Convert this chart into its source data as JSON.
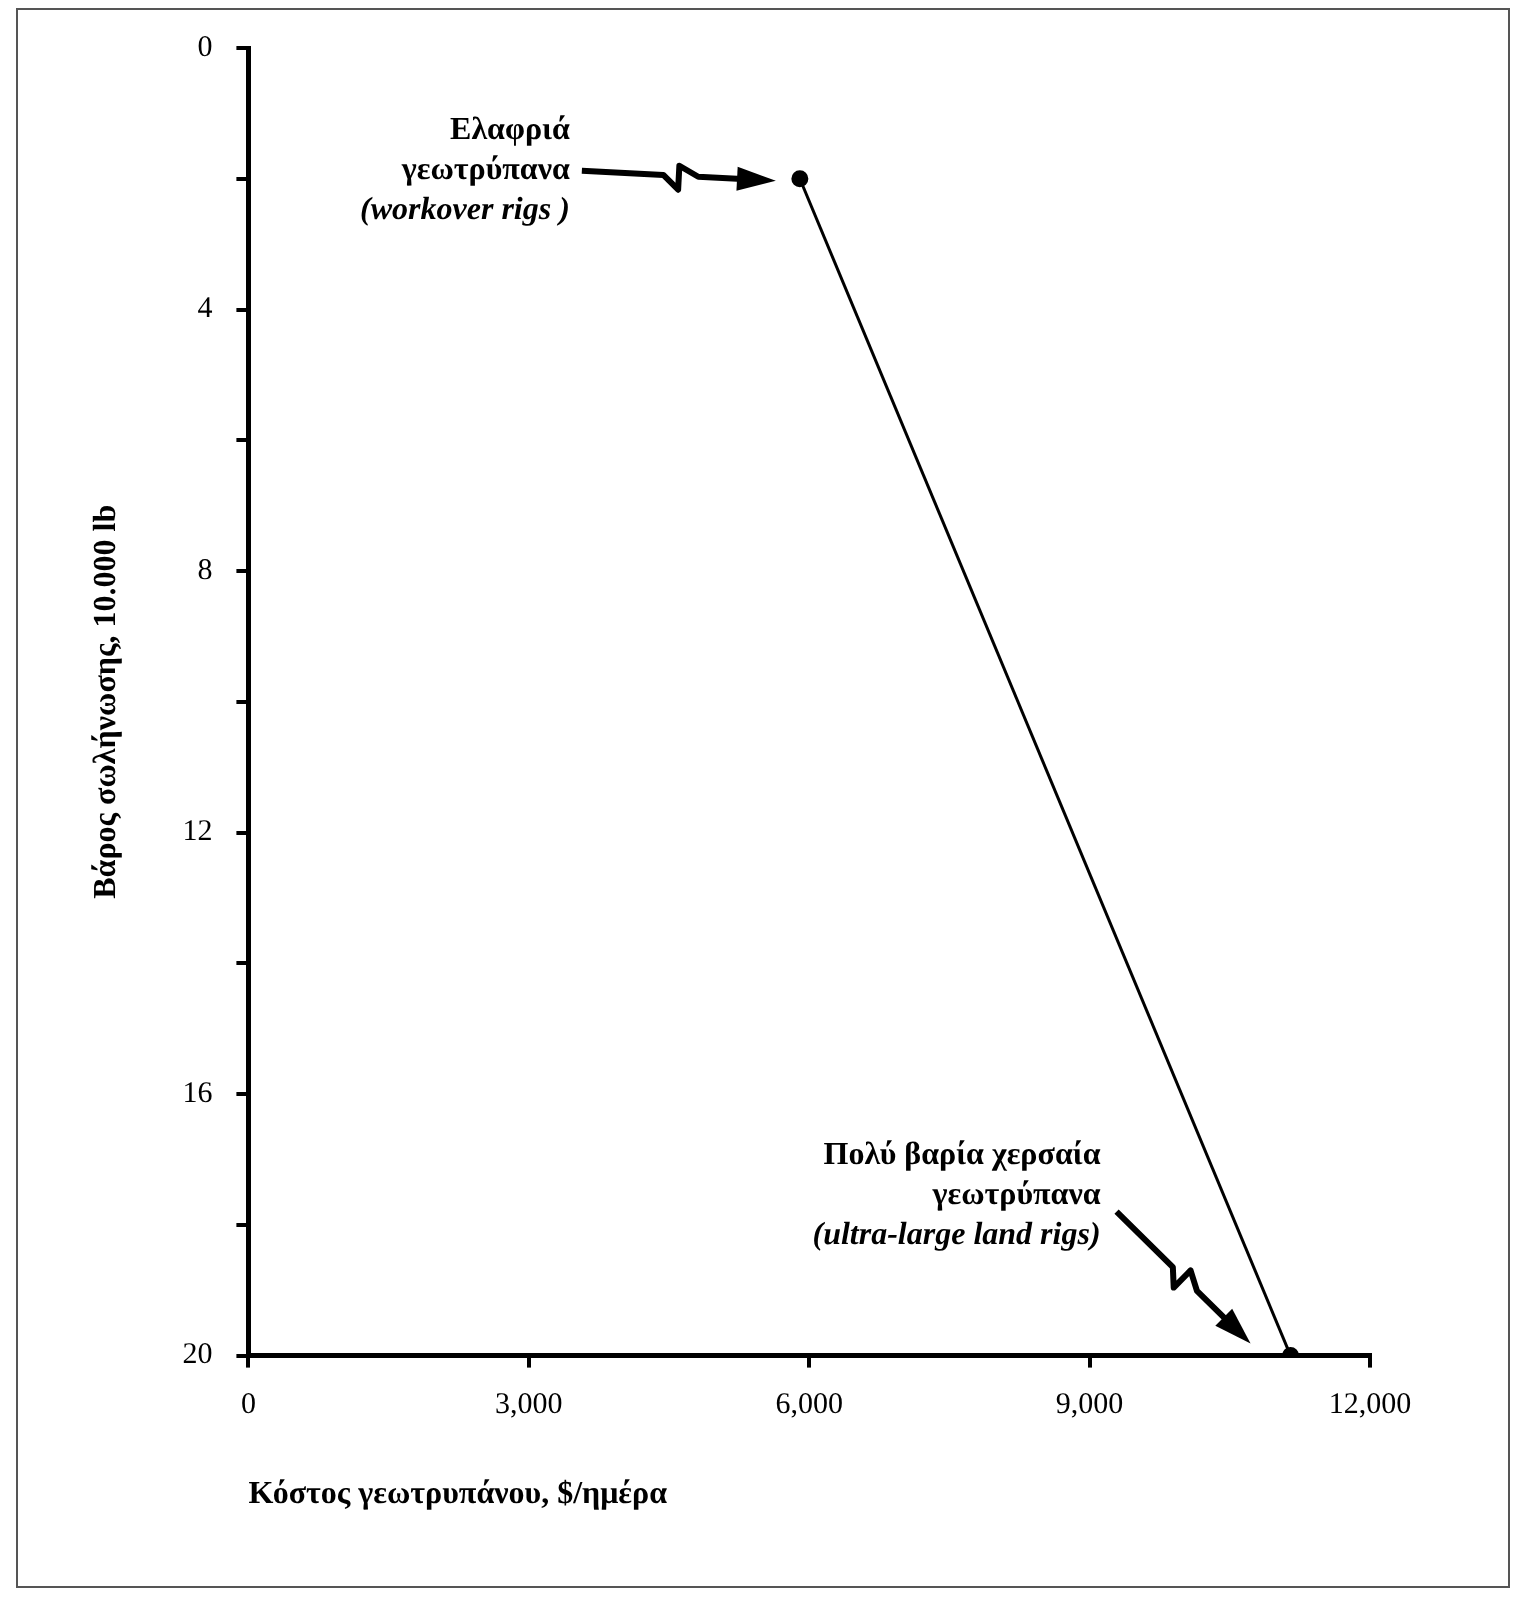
{
  "chart_data": {
    "type": "line",
    "xlabel": "Κόστος γεωτρυπάνου, $/ημέρα",
    "ylabel": "Βάρος σωλήνωσης, 10.000 lb",
    "x": [
      5900,
      11150
    ],
    "series": [
      {
        "color": "#000000",
        "values": [
          2,
          20
        ]
      }
    ],
    "xlim": [
      0,
      12000
    ],
    "xticks": [
      0,
      {
        "value": 3000,
        "label": "3,000"
      },
      {
        "value": 6000,
        "label": "6,000"
      },
      {
        "value": 9000,
        "label": "9,000"
      },
      {
        "value": 12000,
        "label": "12,000"
      }
    ],
    "ylim": [
      20,
      0
    ],
    "yticks": [
      0,
      {
        "value": 2,
        "label": null
      },
      4,
      {
        "value": 6,
        "label": null
      },
      8,
      {
        "value": 10,
        "label": null
      },
      12,
      {
        "value": 14,
        "label": null
      },
      16,
      {
        "value": 18,
        "label": null
      },
      20
    ],
    "annotations": [
      "Ελαφριά\nγεωτρύπανα\n(workover rigs )",
      "Πολύ βαρία χερσαία\nγεωτρύπανα\n(ultra-large land rigs)"
    ],
    "marker": "circle",
    "line_style": "solid",
    "grid": false,
    "legend": false
  }
}
